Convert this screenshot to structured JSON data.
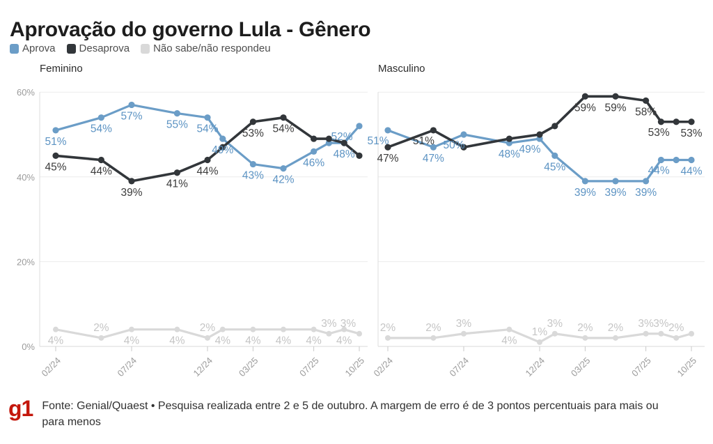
{
  "header": {
    "title": "Aprovação do governo Lula - Gênero"
  },
  "legend": [
    {
      "label": "Aprova",
      "color": "#6b9dc7"
    },
    {
      "label": "Desaprova",
      "color": "#32363a"
    },
    {
      "label": "Não sabe/não respondeu",
      "color": "#d9d9d9"
    }
  ],
  "footer": {
    "logo": "g1",
    "logo_color": "#c4170c",
    "text": "Fonte: Genial/Quaest • Pesquisa realizada entre 2 e 5 de outubro. A margem de erro é de 3 pontos percentuais para mais ou para menos"
  },
  "chart_data": {
    "type": "line",
    "grid": true,
    "y_axis": {
      "labels": [
        "60%",
        "40%",
        "20%",
        "0%"
      ],
      "values": [
        60,
        40,
        20,
        0
      ],
      "range": [
        0,
        62
      ]
    },
    "x_axis": {
      "tick_labels": [
        "02/24",
        "07/24",
        "12/24",
        "03/25",
        "07/25",
        "10/25"
      ],
      "tick_months": [
        0,
        5,
        10,
        13,
        17,
        20
      ]
    },
    "x_months": [
      0,
      3,
      5,
      8,
      10,
      11,
      13,
      15,
      17,
      18,
      19,
      20
    ],
    "point_dates": [
      "02/24",
      "05/24",
      "07/24",
      "10/24",
      "12/24",
      "01/25",
      "03/25",
      "05/25",
      "07/25",
      "08/25",
      "09/25",
      "10/25"
    ],
    "panels": [
      {
        "title": "Feminino",
        "series": [
          {
            "name": "Aprova",
            "color": "#6b9dc7",
            "label_color": "#5c93c3",
            "values": [
              51,
              54,
              57,
              55,
              54,
              49,
              43,
              42,
              46,
              48,
              48,
              52
            ],
            "labels": [
              [
                "51%",
                "b"
              ],
              [
                "54%",
                "b"
              ],
              [
                "57%",
                "b"
              ],
              [
                "55%",
                "b"
              ],
              [
                "54%",
                "b"
              ],
              [
                "49%",
                "b"
              ],
              [
                "43%",
                "b"
              ],
              [
                "42%",
                "b"
              ],
              [
                "46%",
                "b"
              ],
              null,
              [
                "48%",
                "b"
              ],
              [
                "52%",
                "BL"
              ]
            ]
          },
          {
            "name": "Desaprova",
            "color": "#32363a",
            "label_color": "#3b3b3b",
            "values": [
              45,
              44,
              39,
              41,
              44,
              47,
              53,
              54,
              49,
              49,
              48,
              45
            ],
            "labels": [
              [
                "45%",
                "b"
              ],
              [
                "44%",
                "b"
              ],
              [
                "39%",
                "b"
              ],
              [
                "41%",
                "b"
              ],
              [
                "44%",
                "b"
              ],
              null,
              [
                "53%",
                "b"
              ],
              [
                "54%",
                "b"
              ],
              null,
              null,
              null,
              null
            ]
          },
          {
            "name": "Não sabe/não respondeu",
            "color": "#d9d9d9",
            "label_color": "#c5c5c5",
            "values": [
              4,
              2,
              4,
              4,
              2,
              4,
              4,
              4,
              4,
              3,
              4,
              3
            ],
            "labels": [
              [
                "4%",
                "b"
              ],
              [
                "2%",
                "a"
              ],
              [
                "4%",
                "b"
              ],
              [
                "4%",
                "b"
              ],
              [
                "2%",
                "a"
              ],
              [
                "4%",
                "b"
              ],
              [
                "4%",
                "b"
              ],
              [
                "4%",
                "b"
              ],
              [
                "4%",
                "b"
              ],
              [
                "3%",
                "a"
              ],
              [
                "4%",
                "b"
              ],
              [
                "3%",
                "al"
              ]
            ]
          }
        ]
      },
      {
        "title": "Masculino",
        "series": [
          {
            "name": "Aprova",
            "color": "#6b9dc7",
            "label_color": "#5c93c3",
            "values": [
              51,
              47,
              50,
              48,
              49,
              45,
              39,
              39,
              39,
              44,
              44,
              44
            ],
            "labels": [
              [
                "51%",
                "bl"
              ],
              [
                "47%",
                "b"
              ],
              [
                "50%",
                "bl"
              ],
              [
                "48%",
                "b"
              ],
              [
                "49%",
                "bl"
              ],
              [
                "45%",
                "b"
              ],
              [
                "39%",
                "b"
              ],
              [
                "39%",
                "b"
              ],
              [
                "39%",
                "b"
              ],
              null,
              [
                "44%",
                "BL"
              ],
              [
                "44%",
                "b"
              ]
            ]
          },
          {
            "name": "Desaprova",
            "color": "#32363a",
            "label_color": "#3b3b3b",
            "values": [
              47,
              51,
              47,
              49,
              50,
              52,
              59,
              59,
              58,
              53,
              53,
              53
            ],
            "labels": [
              [
                "47%",
                "b"
              ],
              [
                "51%",
                "bl"
              ],
              null,
              null,
              null,
              null,
              [
                "59%",
                "b"
              ],
              [
                "59%",
                "b"
              ],
              [
                "58%",
                "b"
              ],
              null,
              [
                "53%",
                "BL"
              ],
              [
                "53%",
                "b"
              ]
            ]
          },
          {
            "name": "Não sabe/não respondeu",
            "color": "#d9d9d9",
            "label_color": "#c5c5c5",
            "values": [
              2,
              2,
              3,
              4,
              1,
              3,
              2,
              2,
              3,
              3,
              2,
              3
            ],
            "labels": [
              [
                "2%",
                "a"
              ],
              [
                "2%",
                "a"
              ],
              [
                "3%",
                "a"
              ],
              [
                "4%",
                "b"
              ],
              [
                "1%",
                "a"
              ],
              [
                "3%",
                "a"
              ],
              [
                "2%",
                "a"
              ],
              [
                "2%",
                "a"
              ],
              [
                "3%",
                "a"
              ],
              [
                "3%",
                "a"
              ],
              [
                "2%",
                "a"
              ],
              null
            ]
          }
        ]
      }
    ]
  }
}
